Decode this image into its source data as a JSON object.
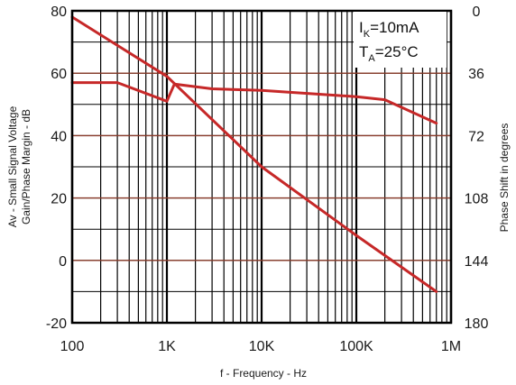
{
  "chart_data": {
    "type": "line",
    "xscale": "log",
    "xlim": [
      100,
      1000000
    ],
    "ylim": [
      -20,
      80
    ],
    "y2lim": [
      0,
      180
    ],
    "y2_reversed": true,
    "grid": true,
    "xlabel": "f - Frequency - Hz",
    "ylabel_line1": "Av - Small Signal Voltage",
    "ylabel_line2": "Gain/Phase Margin - dB",
    "y2label": "Phase Shift in degrees",
    "x_ticks": [
      {
        "value": 100,
        "label": "100"
      },
      {
        "value": 1000,
        "label": "1K"
      },
      {
        "value": 10000,
        "label": "10K"
      },
      {
        "value": 100000,
        "label": "100K"
      },
      {
        "value": 1000000,
        "label": "1M"
      }
    ],
    "y_ticks": [
      {
        "value": 80,
        "label": "80"
      },
      {
        "value": 60,
        "label": "60"
      },
      {
        "value": 40,
        "label": "40"
      },
      {
        "value": 20,
        "label": "20"
      },
      {
        "value": 0,
        "label": "0"
      },
      {
        "value": -20,
        "label": "-20"
      }
    ],
    "y2_ticks": [
      {
        "value": 0,
        "label": "0"
      },
      {
        "value": 36,
        "label": "36"
      },
      {
        "value": 72,
        "label": "72"
      },
      {
        "value": 108,
        "label": "108"
      },
      {
        "value": 144,
        "label": "144"
      },
      {
        "value": 180,
        "label": "180"
      }
    ],
    "annotation": {
      "ik_main": "I",
      "ik_sub": "K",
      "ik_value": "=10mA",
      "ta_main": "T",
      "ta_sub": "A",
      "ta_value": "=25°C"
    },
    "series": [
      {
        "color": "#c62828",
        "points": [
          [
            100,
            78
          ],
          [
            1000,
            59
          ],
          [
            10000,
            30
          ],
          [
            100000,
            8
          ],
          [
            700000,
            -10
          ]
        ]
      },
      {
        "color": "#c62828",
        "points": [
          [
            100,
            57
          ],
          [
            300,
            57
          ],
          [
            1000,
            51
          ],
          [
            1200,
            56.5
          ],
          [
            3000,
            55
          ],
          [
            10000,
            54.5
          ],
          [
            100000,
            52.5
          ],
          [
            200000,
            51.5
          ],
          [
            700000,
            44
          ]
        ]
      }
    ]
  }
}
